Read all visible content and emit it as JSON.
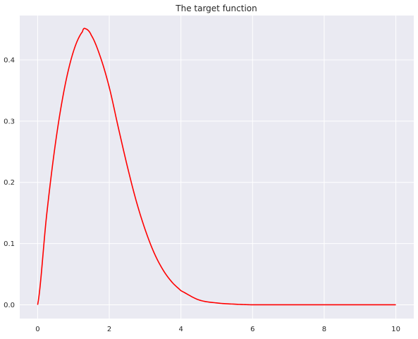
{
  "chart_data": {
    "type": "line",
    "title": "The target function",
    "xlabel": "",
    "ylabel": "",
    "xlim": [
      -0.5,
      10.5
    ],
    "ylim": [
      -0.0225,
      0.4725
    ],
    "x_ticks": [
      0,
      2,
      4,
      6,
      8,
      10
    ],
    "x_tick_labels": [
      "0",
      "2",
      "4",
      "6",
      "8",
      "10"
    ],
    "y_ticks": [
      0.0,
      0.1,
      0.2,
      0.3,
      0.4
    ],
    "y_tick_labels": [
      "0.0",
      "0.1",
      "0.2",
      "0.3",
      "0.4"
    ],
    "grid": true,
    "background_color": "#eaeaf2",
    "grid_color": "#ffffff",
    "series": [
      {
        "color": "#ff0000",
        "x": [
          0,
          0.25,
          0.5,
          0.75,
          1.0,
          1.25,
          1.33,
          1.5,
          1.75,
          2.0,
          2.25,
          2.5,
          2.75,
          3.0,
          3.25,
          3.5,
          3.75,
          4.0,
          4.5,
          5.0,
          5.5,
          6.0,
          7.0,
          8.0,
          9.0,
          10.0
        ],
        "y": [
          0.0,
          0.146,
          0.265,
          0.354,
          0.414,
          0.446,
          0.451,
          0.44,
          0.405,
          0.355,
          0.29,
          0.227,
          0.17,
          0.123,
          0.085,
          0.057,
          0.037,
          0.023,
          0.008,
          0.003,
          0.001,
          0.0,
          0.0,
          0.0,
          0.0,
          0.0
        ]
      }
    ]
  }
}
